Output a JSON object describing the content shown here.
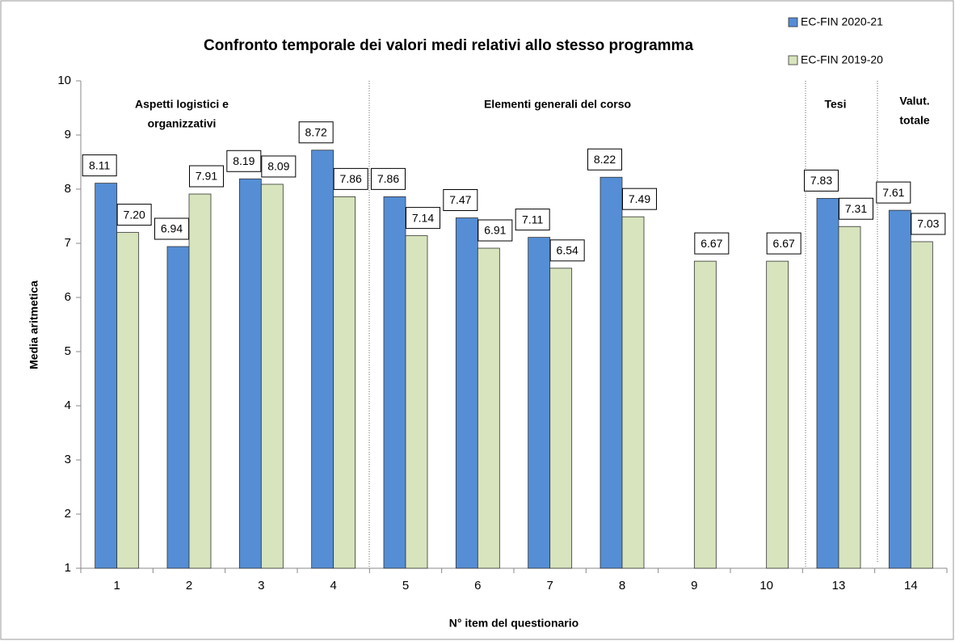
{
  "chart_data": {
    "type": "bar",
    "title": "Confronto temporale dei valori medi relativi allo stesso programma",
    "x_label": "N° item del questionario",
    "y_label": "Media aritmetica",
    "categories": [
      "1",
      "2",
      "3",
      "4",
      "5",
      "6",
      "7",
      "8",
      "9",
      "10",
      "13",
      "14"
    ],
    "series": [
      {
        "name": "EC-FIN 2020-21",
        "color": "#558ed5",
        "values": [
          8.11,
          6.94,
          8.19,
          8.72,
          7.86,
          7.47,
          7.11,
          8.22,
          null,
          null,
          7.83,
          7.61
        ],
        "value_labels": [
          "8.11",
          "6.94",
          "8.19",
          "8.72",
          "7.86",
          "7.47",
          "7.11",
          "8.22",
          null,
          null,
          "7.83",
          "7.61"
        ]
      },
      {
        "name": "EC-FIN 2019-20",
        "color": "#d7e4bd",
        "values": [
          7.2,
          7.91,
          8.09,
          7.86,
          7.14,
          6.91,
          6.54,
          7.49,
          6.67,
          6.67,
          7.31,
          7.03
        ],
        "value_labels": [
          "7.20",
          "7.91",
          "8.09",
          "7.86",
          "7.14",
          "6.91",
          "6.54",
          "7.49",
          "6.67",
          "6.67",
          "7.31",
          "7.03"
        ]
      }
    ],
    "annotations": [
      "Aspetti logistici e",
      "organizzativi",
      "Elementi generali del corso",
      "Tesi",
      "Valut.",
      "totale"
    ],
    "ylim": [
      1,
      10
    ],
    "yticks": [
      1,
      2,
      3,
      4,
      5,
      6,
      7,
      8,
      9,
      10
    ],
    "grid": false,
    "legend": "top-right"
  }
}
